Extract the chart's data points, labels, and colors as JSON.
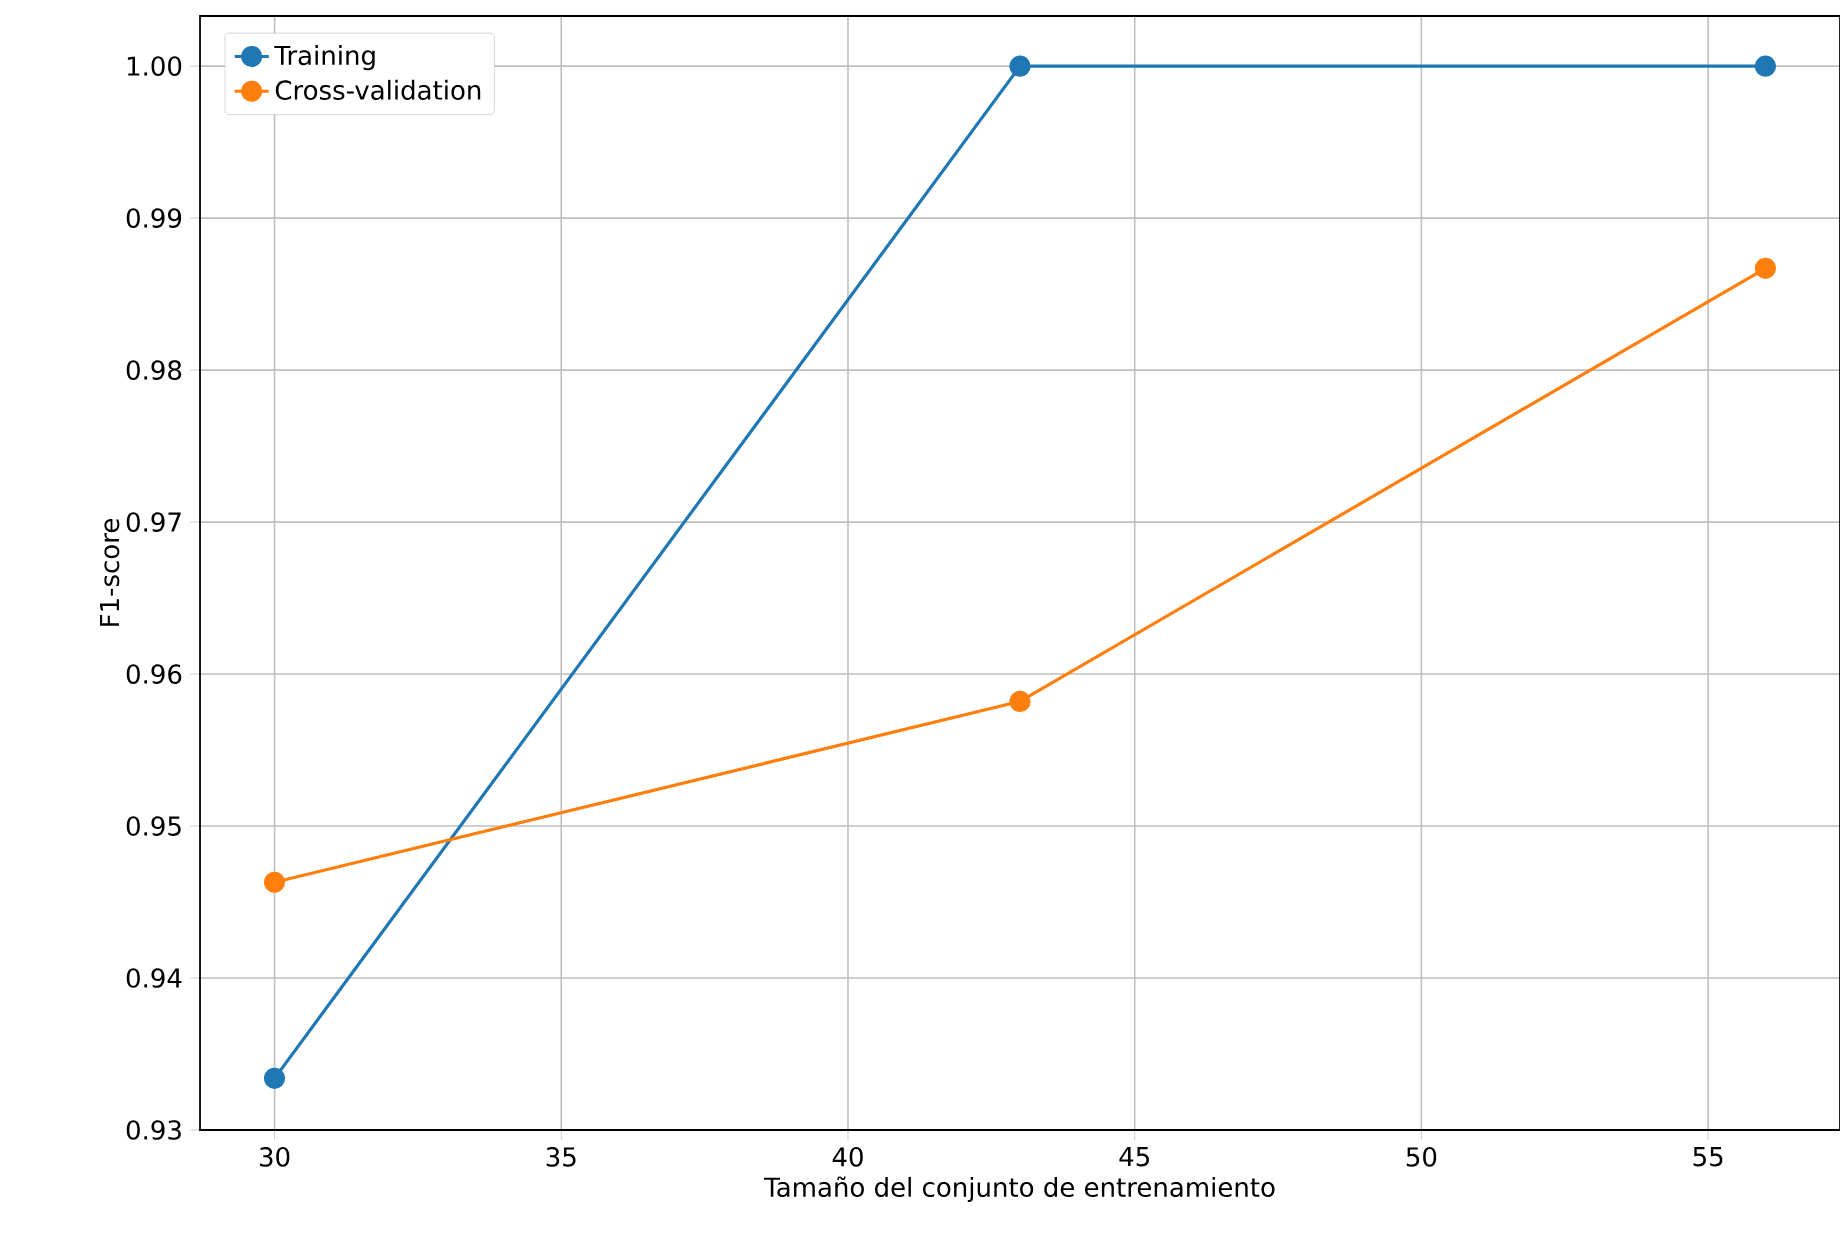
{
  "chart_data": {
    "type": "line",
    "xlabel": "Tamaño del conjunto de entrenamiento",
    "ylabel": "F1-score",
    "x": [
      30,
      43,
      56
    ],
    "series": [
      {
        "name": "Training",
        "color": "#1f77b4",
        "values": [
          0.9334,
          1.0,
          1.0
        ]
      },
      {
        "name": "Cross-validation",
        "color": "#ff7f0e",
        "values": [
          0.9463,
          0.9582,
          0.9867
        ]
      }
    ],
    "xlim": [
      28.7,
      57.3
    ],
    "ylim": [
      0.93,
      1.0033
    ],
    "xticks": [
      30,
      35,
      40,
      45,
      50,
      55
    ],
    "yticks": [
      {
        "value": 0.93,
        "label": "0.93"
      },
      {
        "value": 0.94,
        "label": "0.94"
      },
      {
        "value": 0.95,
        "label": "0.95"
      },
      {
        "value": 0.96,
        "label": "0.96"
      },
      {
        "value": 0.97,
        "label": "0.97"
      },
      {
        "value": 0.98,
        "label": "0.98"
      },
      {
        "value": 0.99,
        "label": "0.99"
      },
      {
        "value": 1.0,
        "label": "1.00"
      }
    ],
    "grid": true,
    "legend": "top left",
    "marker": "circle",
    "line_style": "solid"
  }
}
